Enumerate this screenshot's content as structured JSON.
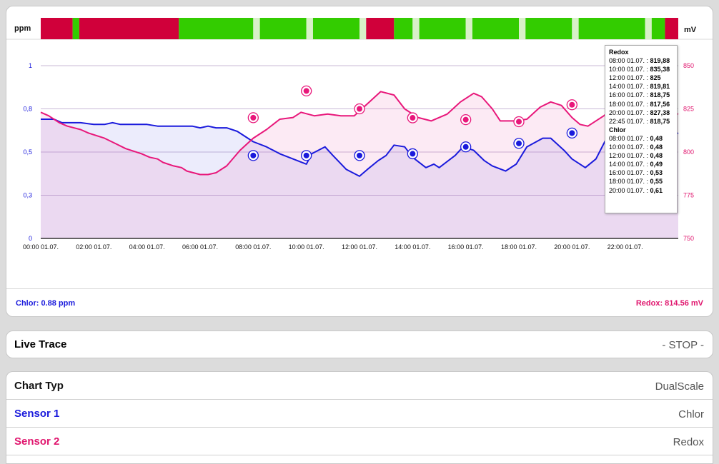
{
  "chart": {
    "left_unit": "ppm",
    "right_unit": "mV",
    "chlor_readout": "Chlor: 0.88 ppm",
    "redox_readout": "Redox: 814.56 mV",
    "colors": {
      "chlor": "#1a1adc",
      "redox": "#e8177a",
      "status_red": "#d0003a",
      "status_green": "#33cc00",
      "status_light": "#d8f0c8"
    }
  },
  "chart_data": {
    "type": "line",
    "x_tick_labels": [
      "00:00 01.07.",
      "02:00 01.07.",
      "04:00 01.07.",
      "06:00 01.07.",
      "08:00 01.07.",
      "10:00 01.07.",
      "12:00 01.07.",
      "14:00 01.07.",
      "16:00 01.07.",
      "18:00 01.07.",
      "20:00 01.07.",
      "22:00 01.07."
    ],
    "x_range_hours": [
      0,
      24
    ],
    "left_axis": {
      "unit": "ppm",
      "range": [
        0,
        1
      ],
      "ticks": [
        0,
        0.25,
        0.5,
        0.75,
        1
      ],
      "tick_labels": [
        "0",
        "0,3",
        "0,5",
        "0,8",
        "1"
      ]
    },
    "right_axis": {
      "unit": "mV",
      "range": [
        750,
        850
      ],
      "ticks": [
        750,
        775,
        800,
        825,
        850
      ],
      "tick_labels": [
        "750",
        "775",
        "800",
        "825",
        "850"
      ]
    },
    "series": [
      {
        "name": "Chlor",
        "axis": "left",
        "points": [
          [
            0,
            0.69
          ],
          [
            0.5,
            0.69
          ],
          [
            0.8,
            0.67
          ],
          [
            1.5,
            0.67
          ],
          [
            2,
            0.66
          ],
          [
            2.4,
            0.66
          ],
          [
            2.7,
            0.67
          ],
          [
            3,
            0.66
          ],
          [
            4,
            0.66
          ],
          [
            4.4,
            0.65
          ],
          [
            5,
            0.65
          ],
          [
            5.7,
            0.65
          ],
          [
            6,
            0.64
          ],
          [
            6.3,
            0.65
          ],
          [
            6.6,
            0.64
          ],
          [
            7,
            0.64
          ],
          [
            7.4,
            0.62
          ],
          [
            8,
            0.56
          ],
          [
            8.5,
            0.53
          ],
          [
            9,
            0.49
          ],
          [
            9.5,
            0.46
          ],
          [
            10,
            0.43
          ],
          [
            10.2,
            0.49
          ],
          [
            10.7,
            0.53
          ],
          [
            11,
            0.48
          ],
          [
            11.5,
            0.4
          ],
          [
            12,
            0.36
          ],
          [
            12.3,
            0.4
          ],
          [
            12.7,
            0.45
          ],
          [
            13,
            0.48
          ],
          [
            13.3,
            0.54
          ],
          [
            13.7,
            0.53
          ],
          [
            14,
            0.47
          ],
          [
            14.5,
            0.41
          ],
          [
            14.8,
            0.43
          ],
          [
            15,
            0.41
          ],
          [
            15.6,
            0.48
          ],
          [
            15.9,
            0.53
          ],
          [
            16.3,
            0.51
          ],
          [
            16.7,
            0.45
          ],
          [
            17,
            0.42
          ],
          [
            17.5,
            0.39
          ],
          [
            17.9,
            0.43
          ],
          [
            18.3,
            0.53
          ],
          [
            18.9,
            0.58
          ],
          [
            19.2,
            0.58
          ],
          [
            19.7,
            0.51
          ],
          [
            20,
            0.46
          ],
          [
            20.5,
            0.41
          ],
          [
            20.9,
            0.46
          ],
          [
            21.3,
            0.58
          ],
          [
            21.7,
            0.67
          ],
          [
            22.1,
            0.69
          ],
          [
            22.4,
            0.7
          ],
          [
            22.9,
            0.68
          ],
          [
            23.4,
            0.63
          ],
          [
            23.8,
            0.6
          ],
          [
            24,
            0.61
          ]
        ],
        "markers": [
          [
            8,
            0.48
          ],
          [
            10,
            0.48
          ],
          [
            12,
            0.48
          ],
          [
            14,
            0.49
          ],
          [
            16,
            0.53
          ],
          [
            18,
            0.55
          ],
          [
            20,
            0.61
          ]
        ]
      },
      {
        "name": "Redox",
        "axis": "right",
        "points": [
          [
            0,
            823
          ],
          [
            0.3,
            821
          ],
          [
            0.7,
            817
          ],
          [
            1,
            815
          ],
          [
            1.5,
            813
          ],
          [
            1.8,
            811
          ],
          [
            2.4,
            808
          ],
          [
            2.8,
            805
          ],
          [
            3.2,
            802
          ],
          [
            3.8,
            799
          ],
          [
            4.1,
            797
          ],
          [
            4.4,
            796
          ],
          [
            4.6,
            794
          ],
          [
            5,
            792
          ],
          [
            5.3,
            791
          ],
          [
            5.5,
            789
          ],
          [
            6,
            787
          ],
          [
            6.3,
            787
          ],
          [
            6.6,
            788
          ],
          [
            7,
            792
          ],
          [
            7.5,
            801
          ],
          [
            8,
            808
          ],
          [
            8.5,
            813
          ],
          [
            9,
            819
          ],
          [
            9.5,
            820
          ],
          [
            9.8,
            823
          ],
          [
            10.3,
            821
          ],
          [
            10.8,
            822
          ],
          [
            11.3,
            821
          ],
          [
            11.8,
            821
          ],
          [
            12.3,
            828
          ],
          [
            12.8,
            835
          ],
          [
            13.3,
            833
          ],
          [
            13.7,
            825
          ],
          [
            14.2,
            820
          ],
          [
            14.7,
            818
          ],
          [
            15.3,
            822
          ],
          [
            15.8,
            829
          ],
          [
            16.3,
            834
          ],
          [
            16.6,
            832
          ],
          [
            17,
            825
          ],
          [
            17.3,
            818
          ],
          [
            17.8,
            818
          ],
          [
            18.3,
            819
          ],
          [
            18.8,
            826
          ],
          [
            19.2,
            829
          ],
          [
            19.6,
            827
          ],
          [
            20,
            820
          ],
          [
            20.3,
            816
          ],
          [
            20.6,
            815
          ],
          [
            21.2,
            821
          ],
          [
            21.6,
            826
          ],
          [
            22.1,
            830
          ],
          [
            22.5,
            832
          ],
          [
            22.9,
            830
          ],
          [
            23.3,
            827
          ],
          [
            23.7,
            823
          ],
          [
            24,
            822
          ]
        ],
        "markers": [
          [
            8,
            819.88
          ],
          [
            10,
            835.38
          ],
          [
            12,
            825
          ],
          [
            14,
            819.81
          ],
          [
            16,
            818.75
          ],
          [
            18,
            817.56
          ],
          [
            20,
            827.38
          ]
        ]
      }
    ],
    "status_bar": [
      {
        "from": 0,
        "to": 1.2,
        "status": "red"
      },
      {
        "from": 1.2,
        "to": 1.45,
        "status": "green"
      },
      {
        "from": 1.45,
        "to": 5.2,
        "status": "red"
      },
      {
        "from": 5.2,
        "to": 8,
        "status": "green"
      },
      {
        "from": 8,
        "to": 8.25,
        "status": "light"
      },
      {
        "from": 8.25,
        "to": 10,
        "status": "green"
      },
      {
        "from": 10,
        "to": 10.25,
        "status": "light"
      },
      {
        "from": 10.25,
        "to": 12,
        "status": "green"
      },
      {
        "from": 12,
        "to": 12.25,
        "status": "light"
      },
      {
        "from": 12.25,
        "to": 13.3,
        "status": "red"
      },
      {
        "from": 13.3,
        "to": 14,
        "status": "green"
      },
      {
        "from": 14,
        "to": 14.25,
        "status": "light"
      },
      {
        "from": 14.25,
        "to": 16,
        "status": "green"
      },
      {
        "from": 16,
        "to": 16.25,
        "status": "light"
      },
      {
        "from": 16.25,
        "to": 18,
        "status": "green"
      },
      {
        "from": 18,
        "to": 18.25,
        "status": "light"
      },
      {
        "from": 18.25,
        "to": 20,
        "status": "green"
      },
      {
        "from": 20,
        "to": 20.25,
        "status": "light"
      },
      {
        "from": 20.25,
        "to": 22.75,
        "status": "green"
      },
      {
        "from": 22.75,
        "to": 23,
        "status": "light"
      },
      {
        "from": 23,
        "to": 23.5,
        "status": "green"
      },
      {
        "from": 23.5,
        "to": 24,
        "status": "red"
      }
    ],
    "legend": "none",
    "grid": true
  },
  "tooltip": {
    "redox_title": "Redox",
    "redox_rows": [
      {
        "time": "08:00 01.07. :",
        "value": "819,88"
      },
      {
        "time": "10:00 01.07. :",
        "value": "835,38"
      },
      {
        "time": "12:00 01.07. :",
        "value": "825"
      },
      {
        "time": "14:00 01.07. :",
        "value": "819,81"
      },
      {
        "time": "16:00 01.07. :",
        "value": "818,75"
      },
      {
        "time": "18:00 01.07. :",
        "value": "817,56"
      },
      {
        "time": "20:00 01.07. :",
        "value": "827,38"
      },
      {
        "time": "22:45 01.07. :",
        "value": "818,75"
      }
    ],
    "chlor_title": "Chlor",
    "chlor_rows": [
      {
        "time": "08:00 01.07. :",
        "value": "0,48"
      },
      {
        "time": "10:00 01.07. :",
        "value": "0,48"
      },
      {
        "time": "12:00 01.07. :",
        "value": "0,48"
      },
      {
        "time": "14:00 01.07. :",
        "value": "0,49"
      },
      {
        "time": "16:00 01.07. :",
        "value": "0,53"
      },
      {
        "time": "18:00 01.07. :",
        "value": "0,55"
      },
      {
        "time": "20:00 01.07. :",
        "value": "0,61"
      }
    ]
  },
  "live_trace": {
    "label": "Live Trace",
    "action": "- STOP -"
  },
  "settings": [
    {
      "label": "Chart Typ",
      "value": "DualScale",
      "label_color": "#111111"
    },
    {
      "label": "Sensor 1",
      "value": "Chlor",
      "label_color": "#1a1adc"
    },
    {
      "label": "Sensor 2",
      "value": "Redox",
      "label_color": "#e0166e"
    }
  ]
}
